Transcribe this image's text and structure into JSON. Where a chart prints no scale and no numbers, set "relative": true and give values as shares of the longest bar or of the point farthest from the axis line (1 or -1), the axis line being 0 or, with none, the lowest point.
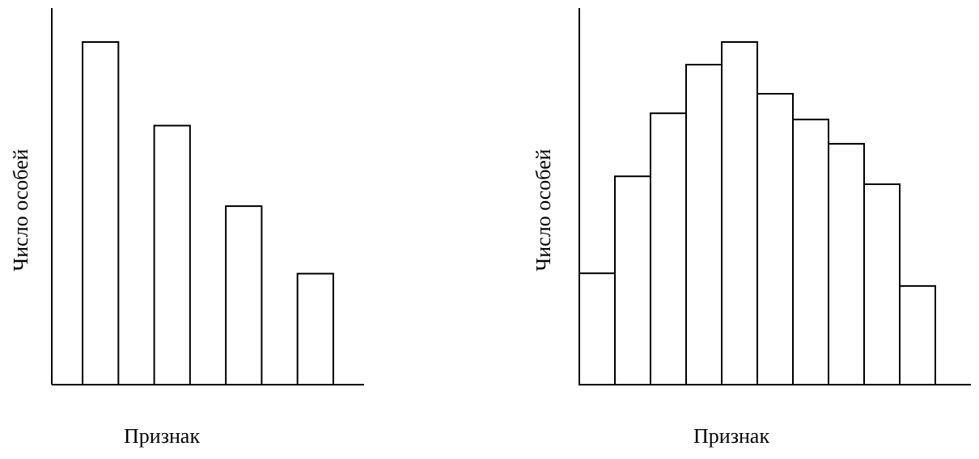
{
  "chart_data": [
    {
      "type": "bar",
      "relative": true,
      "xlabel": "Признак",
      "ylabel": "Число особей",
      "categories": [
        null,
        null,
        null,
        null
      ],
      "values": [
        1,
        0.756,
        0.521,
        0.324
      ],
      "color": "#ffffff"
    },
    {
      "type": "bar",
      "relative": true,
      "xlabel": "Признак",
      "ylabel": "Число особей",
      "categories": [
        null,
        null,
        null,
        null,
        null,
        null,
        null,
        null,
        null,
        null
      ],
      "values": [
        0.325,
        0.608,
        0.792,
        0.934,
        1,
        0.849,
        0.774,
        0.703,
        0.585,
        0.288
      ],
      "color": "#ffffff"
    }
  ]
}
